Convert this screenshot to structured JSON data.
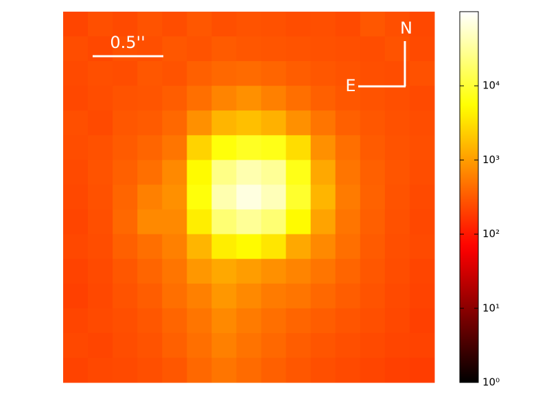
{
  "chart_data": {
    "type": "heatmap",
    "colormap": "hot",
    "zscale": "log",
    "annotations": {
      "scale_bar": "0.5''",
      "north": "N",
      "east": "E"
    },
    "zlim": [
      1,
      100000
    ],
    "zticks": [
      {
        "value": 1,
        "label": "10⁰"
      },
      {
        "value": 10,
        "label": "10¹"
      },
      {
        "value": 100,
        "label": "10²"
      },
      {
        "value": 1000,
        "label": "10³"
      },
      {
        "value": 10000,
        "label": "10⁴"
      }
    ],
    "z": [
      [
        220,
        260,
        240,
        280,
        250,
        300,
        260,
        280,
        270,
        250,
        260,
        240,
        300,
        260,
        230
      ],
      [
        250,
        230,
        270,
        260,
        300,
        280,
        320,
        300,
        290,
        280,
        270,
        260,
        250,
        280,
        240
      ],
      [
        240,
        260,
        250,
        300,
        280,
        350,
        400,
        420,
        380,
        330,
        300,
        280,
        260,
        250,
        270
      ],
      [
        230,
        250,
        280,
        290,
        330,
        450,
        650,
        800,
        600,
        450,
        350,
        300,
        280,
        260,
        240
      ],
      [
        260,
        240,
        300,
        320,
        400,
        800,
        1500,
        1800,
        1400,
        800,
        500,
        350,
        300,
        270,
        250
      ],
      [
        250,
        270,
        320,
        380,
        500,
        2500,
        6000,
        8000,
        7000,
        3000,
        800,
        450,
        320,
        280,
        260
      ],
      [
        240,
        280,
        350,
        450,
        700,
        5000,
        25000,
        40000,
        30000,
        7000,
        1200,
        500,
        350,
        290,
        250
      ],
      [
        230,
        270,
        380,
        600,
        800,
        6000,
        40000,
        70000,
        45000,
        9000,
        1500,
        550,
        360,
        280,
        240
      ],
      [
        220,
        260,
        400,
        700,
        700,
        4000,
        20000,
        30000,
        20000,
        5000,
        1100,
        500,
        340,
        270,
        230
      ],
      [
        230,
        250,
        350,
        450,
        600,
        1500,
        4000,
        5000,
        3500,
        1200,
        700,
        450,
        320,
        260,
        240
      ],
      [
        210,
        240,
        300,
        380,
        500,
        900,
        1200,
        1000,
        800,
        650,
        500,
        380,
        300,
        250,
        220
      ],
      [
        200,
        230,
        280,
        330,
        450,
        600,
        900,
        700,
        550,
        500,
        400,
        330,
        280,
        240,
        210
      ],
      [
        220,
        240,
        260,
        300,
        380,
        500,
        700,
        550,
        450,
        380,
        330,
        290,
        260,
        230,
        200
      ],
      [
        230,
        220,
        250,
        280,
        350,
        450,
        600,
        480,
        400,
        330,
        290,
        260,
        240,
        220,
        210
      ],
      [
        210,
        230,
        240,
        260,
        300,
        400,
        500,
        420,
        350,
        300,
        260,
        240,
        220,
        200,
        190
      ]
    ]
  }
}
